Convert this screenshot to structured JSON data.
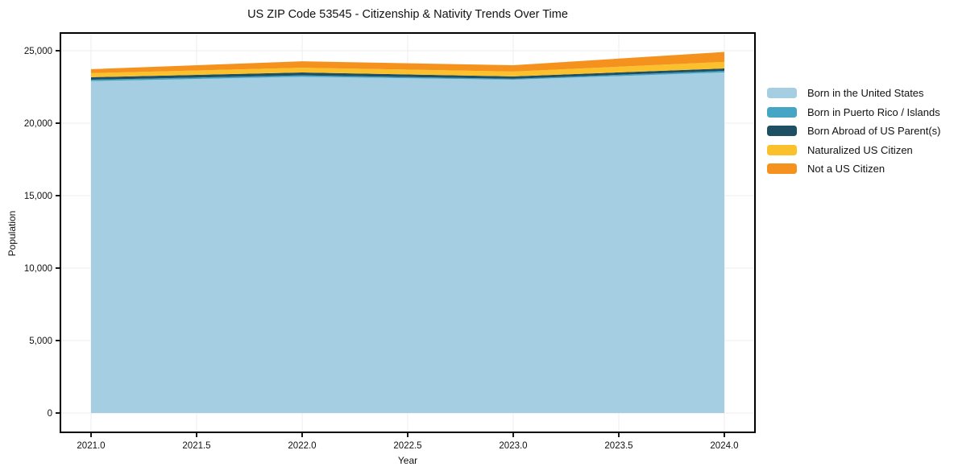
{
  "title": "US ZIP Code 53545 - Citizenship & Nativity Trends Over Time",
  "axes": {
    "xlabel": "Year",
    "ylabel": "Population",
    "xtick_labels": [
      "2021.0",
      "2021.5",
      "2022.0",
      "2022.5",
      "2023.0",
      "2023.5",
      "2024.0"
    ],
    "xtick_values": [
      2021,
      2021.5,
      2022,
      2022.5,
      2023,
      2023.5,
      2024
    ],
    "ytick_labels": [
      "0",
      "5,000",
      "10,000",
      "15,000",
      "20,000",
      "25,000"
    ],
    "ytick_values": [
      0,
      5000,
      10000,
      15000,
      20000,
      25000
    ]
  },
  "colors": {
    "grid": "#ededed",
    "spine": "#000000",
    "text": "#111111",
    "background": "#ffffff"
  },
  "chart_data": {
    "type": "area",
    "stacked": true,
    "title": "US ZIP Code 53545 - Citizenship & Nativity Trends Over Time",
    "xlabel": "Year",
    "ylabel": "Population",
    "x": [
      2021,
      2022,
      2023,
      2024
    ],
    "series": [
      {
        "name": "Born in the United States",
        "color": "#A6CEE3",
        "values": [
          22900,
          23200,
          23000,
          23500
        ]
      },
      {
        "name": "Born in Puerto Rico / Islands",
        "color": "#46A5C4",
        "values": [
          100,
          100,
          60,
          110
        ]
      },
      {
        "name": "Born Abroad of US Parent(s)",
        "color": "#1F4F63",
        "values": [
          170,
          200,
          170,
          170
        ]
      },
      {
        "name": "Naturalized US Citizen",
        "color": "#FBC12D",
        "values": [
          280,
          330,
          330,
          445
        ]
      },
      {
        "name": "Not a US Citizen",
        "color": "#F5921E",
        "values": [
          280,
          445,
          440,
          690
        ]
      }
    ],
    "xlim": [
      2021,
      2024
    ],
    "ylim": [
      0,
      25000
    ],
    "grid": true,
    "legend_position": "right"
  }
}
